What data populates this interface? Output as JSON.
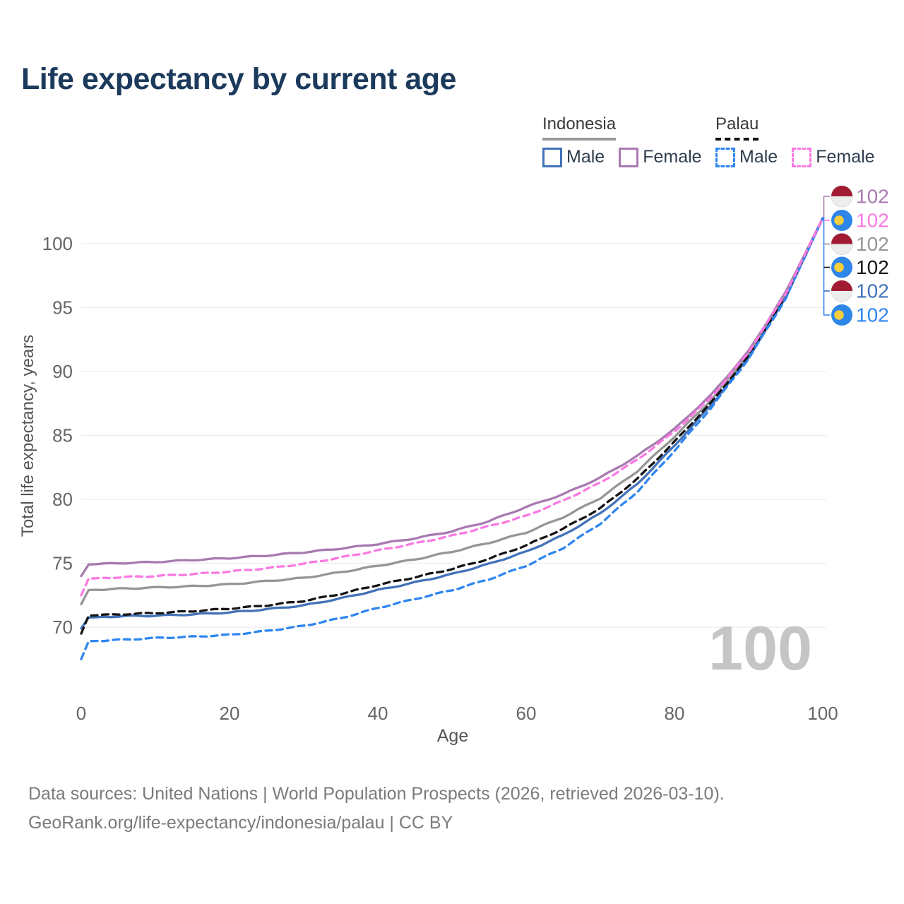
{
  "title": "Life expectancy by current age",
  "legend": {
    "groups": [
      {
        "label": "Indonesia",
        "underline_color": "#999999",
        "underline_style": "solid",
        "items": [
          {
            "label": "Male",
            "color": "#4272b8",
            "dashed": false
          },
          {
            "label": "Female",
            "color": "#a87ab0",
            "dashed": false
          }
        ]
      },
      {
        "label": "Palau",
        "underline_color": "#111111",
        "underline_style": "dashed",
        "items": [
          {
            "label": "Male",
            "color": "#2f86f0",
            "dashed": true
          },
          {
            "label": "Female",
            "color": "#f97ae3",
            "dashed": true
          }
        ]
      }
    ]
  },
  "watermark": "100",
  "chart_data": {
    "type": "line",
    "title": "Life expectancy by current age",
    "xlabel": "Age",
    "ylabel": "Total life expectancy, years",
    "x_ticks": [
      0,
      20,
      40,
      60,
      80,
      100
    ],
    "y_ticks": [
      70,
      75,
      80,
      85,
      90,
      95,
      100
    ],
    "xlim": [
      0,
      100
    ],
    "ylim": [
      67,
      104
    ],
    "grid": "horizontal",
    "legend_position": "top-right",
    "x": [
      0,
      1,
      5,
      10,
      15,
      20,
      25,
      30,
      35,
      40,
      45,
      50,
      55,
      60,
      65,
      70,
      75,
      80,
      85,
      90,
      95,
      100
    ],
    "series": [
      {
        "name": "Indonesia Female",
        "country": "Indonesia",
        "flag": "indonesia",
        "color": "#a87ab0",
        "dashed": false,
        "end_label": "102",
        "values": [
          74.0,
          74.9,
          75.0,
          75.1,
          75.25,
          75.4,
          75.6,
          75.85,
          76.15,
          76.5,
          76.95,
          77.5,
          78.3,
          79.4,
          80.4,
          81.7,
          83.4,
          85.5,
          88.2,
          91.6,
          96.2,
          102
        ]
      },
      {
        "name": "Palau Female",
        "country": "Palau",
        "flag": "palau",
        "color": "#f97ae3",
        "dashed": true,
        "end_label": "102",
        "values": [
          72.5,
          73.8,
          73.9,
          74.0,
          74.15,
          74.35,
          74.6,
          74.95,
          75.45,
          76.0,
          76.55,
          77.15,
          77.9,
          78.7,
          79.9,
          81.3,
          83.1,
          85.3,
          88.0,
          91.5,
          96.1,
          102
        ]
      },
      {
        "name": "Indonesia (both sexes)",
        "country": "Indonesia",
        "flag": "indonesia",
        "color": "#969696",
        "dashed": false,
        "end_label": "102",
        "values": [
          71.8,
          72.9,
          73.0,
          73.1,
          73.2,
          73.35,
          73.6,
          73.85,
          74.3,
          74.8,
          75.3,
          75.9,
          76.6,
          77.4,
          78.6,
          80.1,
          82.2,
          84.9,
          87.8,
          91.4,
          96.0,
          102
        ]
      },
      {
        "name": "Palau (both sexes)",
        "country": "Palau",
        "flag": "palau",
        "color": "#151515",
        "dashed": true,
        "end_label": "102",
        "values": [
          69.5,
          70.9,
          71.0,
          71.1,
          71.25,
          71.45,
          71.7,
          72.05,
          72.6,
          73.3,
          73.9,
          74.55,
          75.35,
          76.4,
          77.7,
          79.3,
          81.6,
          84.5,
          87.6,
          91.2,
          95.9,
          102
        ]
      },
      {
        "name": "Indonesia Male",
        "country": "Indonesia",
        "flag": "indonesia",
        "color": "#4272b8",
        "dashed": false,
        "end_label": "102",
        "values": [
          69.9,
          70.75,
          70.85,
          70.9,
          71.0,
          71.15,
          71.4,
          71.7,
          72.25,
          72.9,
          73.5,
          74.15,
          74.95,
          75.9,
          77.2,
          78.9,
          81.2,
          84.2,
          87.4,
          91.1,
          95.8,
          102
        ]
      },
      {
        "name": "Palau Male",
        "country": "Palau",
        "flag": "palau",
        "color": "#2f86f0",
        "dashed": true,
        "end_label": "102",
        "values": [
          67.5,
          68.9,
          69.0,
          69.15,
          69.25,
          69.4,
          69.7,
          70.1,
          70.7,
          71.5,
          72.2,
          72.9,
          73.75,
          74.8,
          76.2,
          78.1,
          80.6,
          83.8,
          87.2,
          91.0,
          95.7,
          102
        ]
      }
    ],
    "flag_colors": {
      "indonesia_red": "#a11c33",
      "indonesia_white": "#ededed",
      "palau_blue": "#2e86e8",
      "palau_yellow": "#f5ce3e"
    }
  },
  "footer": {
    "line1": "Data sources: United Nations | World Population Prospects (2026, retrieved 2026-03-10).",
    "line2": "GeoRank.org/life-expectancy/indonesia/palau | CC BY"
  }
}
